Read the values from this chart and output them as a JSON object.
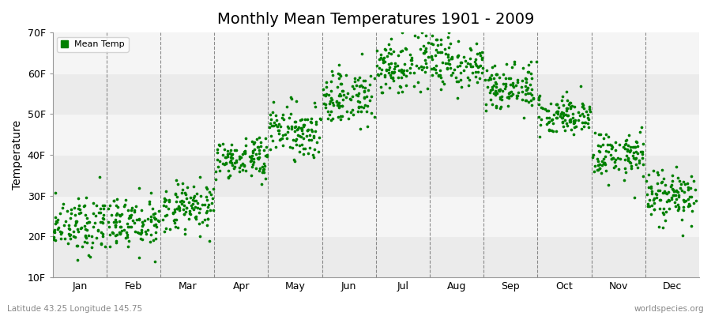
{
  "title": "Monthly Mean Temperatures 1901 - 2009",
  "ylabel": "Temperature",
  "subtitle_left": "Latitude 43.25 Longitude 145.75",
  "subtitle_right": "worldspecies.org",
  "legend_label": "Mean Temp",
  "ylim": [
    10,
    70
  ],
  "yticks": [
    10,
    20,
    30,
    40,
    50,
    60,
    70
  ],
  "ytick_labels": [
    "10F",
    "20F",
    "30F",
    "40F",
    "50F",
    "60F",
    "70F"
  ],
  "months": [
    "Jan",
    "Feb",
    "Mar",
    "Apr",
    "May",
    "Jun",
    "Jul",
    "Aug",
    "Sep",
    "Oct",
    "Nov",
    "Dec"
  ],
  "dot_color": "#008000",
  "dot_size": 7,
  "background_color": "#ffffff",
  "plot_bg_bands": [
    "#ebebeb",
    "#f5f5f5"
  ],
  "grid_color": "#606060",
  "title_fontsize": 14,
  "axis_label_fontsize": 10,
  "tick_fontsize": 9,
  "n_years": 109,
  "monthly_means_F": [
    23,
    23,
    27,
    39,
    46,
    54,
    62,
    63,
    57,
    50,
    40,
    30
  ],
  "monthly_stds_F": [
    3.5,
    3.5,
    3.0,
    2.5,
    3.0,
    3.5,
    3.5,
    3.5,
    3.0,
    2.5,
    3.0,
    3.5
  ]
}
